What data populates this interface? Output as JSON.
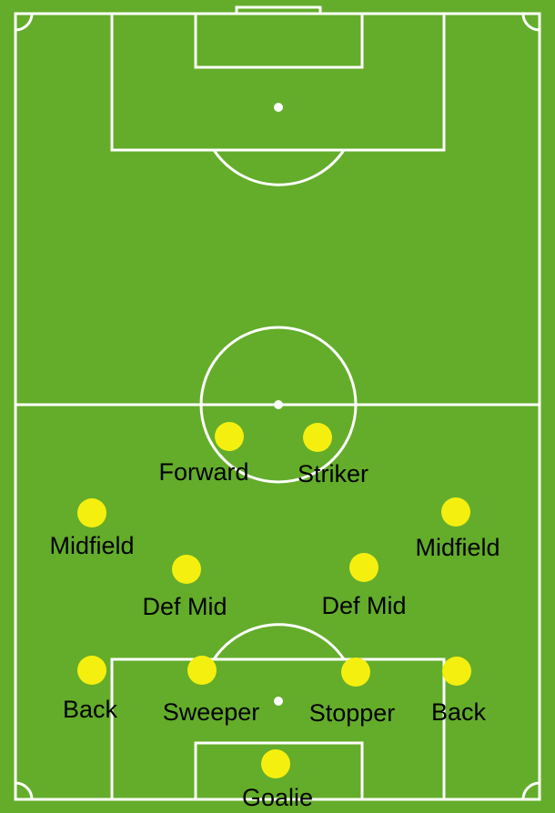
{
  "colors": {
    "pitch": "#63ad2a",
    "lines": "#ffffff",
    "player": "#f5ef0f",
    "label": "#000000"
  },
  "players": [
    {
      "id": "forward",
      "label": "Forward"
    },
    {
      "id": "striker",
      "label": "Striker"
    },
    {
      "id": "midfield-left",
      "label": "Midfield"
    },
    {
      "id": "midfield-right",
      "label": "Midfield"
    },
    {
      "id": "def-mid-left",
      "label": "Def Mid"
    },
    {
      "id": "def-mid-right",
      "label": "Def Mid"
    },
    {
      "id": "back-left",
      "label": "Back"
    },
    {
      "id": "sweeper",
      "label": "Sweeper"
    },
    {
      "id": "stopper",
      "label": "Stopper"
    },
    {
      "id": "back-right",
      "label": "Back"
    },
    {
      "id": "goalie",
      "label": "Goalie"
    }
  ]
}
